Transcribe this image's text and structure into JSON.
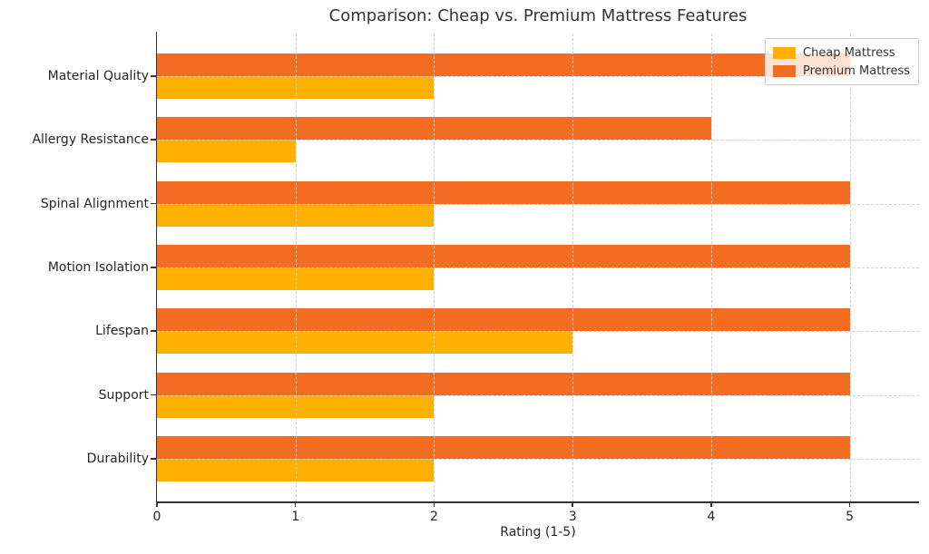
{
  "window": {
    "background": "#ffffff"
  },
  "chart_data": {
    "type": "bar",
    "orientation": "horizontal",
    "title": "Comparison: Cheap vs. Premium Mattress Features",
    "xlabel": "Rating (1-5)",
    "ylabel": "",
    "categories": [
      "Material Quality",
      "Allergy Resistance",
      "Spinal Alignment",
      "Motion Isolation",
      "Lifespan",
      "Support",
      "Durability"
    ],
    "category_order": "top-to-bottom",
    "series": [
      {
        "name": "Cheap Mattress",
        "color": "#FFB000",
        "values": [
          2,
          1,
          2,
          2,
          3,
          2,
          2
        ]
      },
      {
        "name": "Premium Mattress",
        "color": "#F26C21",
        "values": [
          5,
          4,
          5,
          5,
          5,
          5,
          5
        ]
      }
    ],
    "xlim": [
      0,
      5.5
    ],
    "xticks": [
      0,
      1,
      2,
      3,
      4,
      5
    ],
    "grid": true,
    "grid_style": "dashed",
    "grid_above_bars": true,
    "legend_position": "upper right"
  },
  "style": {
    "grid_color": "#cfcfcf",
    "spine_color": "#333333",
    "text_color": "#262626",
    "title_color": "#333333",
    "legend_border_color": "#cccccc",
    "legend_background": "rgba(255,255,255,0.8)"
  }
}
